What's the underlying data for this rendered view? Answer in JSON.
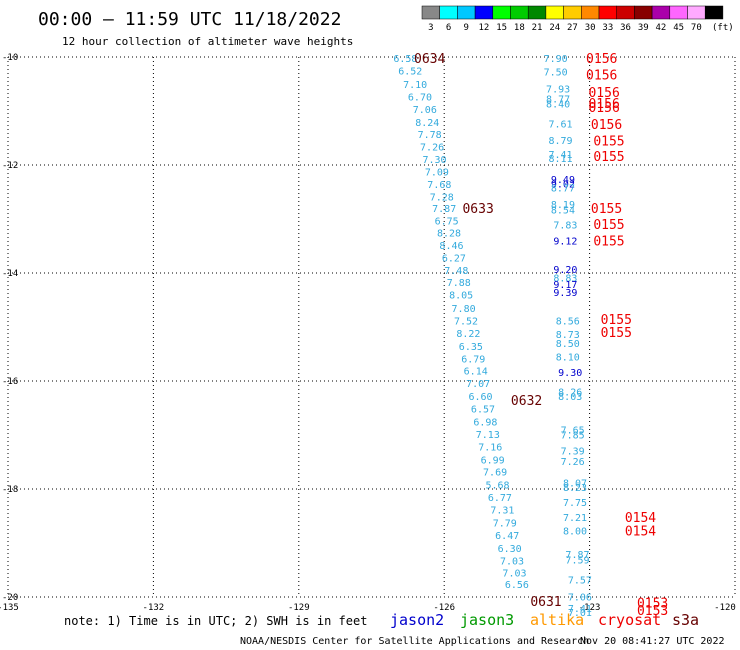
{
  "header": {
    "title": "00:00 – 11:59 UTC 11/18/2022",
    "subtitle": "12 hour collection of altimeter wave heights"
  },
  "legend": {
    "unit": "(ft)",
    "bins": [
      {
        "label": "3",
        "color": "#888888"
      },
      {
        "label": "6",
        "color": "#00ffff"
      },
      {
        "label": "9",
        "color": "#00c8ff"
      },
      {
        "label": "12",
        "color": "#0000ff"
      },
      {
        "label": "15",
        "color": "#00ff00"
      },
      {
        "label": "18",
        "color": "#00cc00"
      },
      {
        "label": "21",
        "color": "#008800"
      },
      {
        "label": "24",
        "color": "#ffff00"
      },
      {
        "label": "27",
        "color": "#ffcc00"
      },
      {
        "label": "30",
        "color": "#ff8800"
      },
      {
        "label": "33",
        "color": "#ff0000"
      },
      {
        "label": "36",
        "color": "#cc0000"
      },
      {
        "label": "39",
        "color": "#880000"
      },
      {
        "label": "42",
        "color": "#aa00aa"
      },
      {
        "label": "45",
        "color": "#ff66ff"
      },
      {
        "label": "70",
        "color": "#ffaaff"
      },
      {
        "label": "",
        "color": "#000000"
      }
    ]
  },
  "axes": {
    "lat_ticks": [
      "-10",
      "-12",
      "-14",
      "-16",
      "-18",
      "-20"
    ],
    "lon_ticks": [
      "-135",
      "-132",
      "-129",
      "-126",
      "-123",
      "-120"
    ],
    "lat_range": [
      -20,
      -10
    ],
    "lon_range": [
      -135,
      -120
    ],
    "grid": "dotted"
  },
  "tracks": {
    "west": {
      "color": "#33aadd",
      "points": [
        {
          "lat": -10.02,
          "lon": -126.8,
          "v": "6.58"
        },
        {
          "lat": -10.25,
          "lon": -126.7,
          "v": "6.52"
        },
        {
          "lat": -10.5,
          "lon": -126.6,
          "v": "7.10"
        },
        {
          "lat": -10.73,
          "lon": -126.5,
          "v": "6.70"
        },
        {
          "lat": -10.96,
          "lon": -126.4,
          "v": "7.06"
        },
        {
          "lat": -11.2,
          "lon": -126.35,
          "v": "8.24"
        },
        {
          "lat": -11.43,
          "lon": -126.3,
          "v": "7.78"
        },
        {
          "lat": -11.66,
          "lon": -126.25,
          "v": "7.26"
        },
        {
          "lat": -11.89,
          "lon": -126.2,
          "v": "7.30"
        },
        {
          "lat": -12.12,
          "lon": -126.15,
          "v": "7.09"
        },
        {
          "lat": -12.35,
          "lon": -126.1,
          "v": "7.68"
        },
        {
          "lat": -12.58,
          "lon": -126.05,
          "v": "7.28"
        },
        {
          "lat": -12.8,
          "lon": -126.0,
          "v": "7.87"
        },
        {
          "lat": -13.03,
          "lon": -125.95,
          "v": "6.75"
        },
        {
          "lat": -13.25,
          "lon": -125.9,
          "v": "8.28"
        },
        {
          "lat": -13.48,
          "lon": -125.85,
          "v": "8.46"
        },
        {
          "lat": -13.71,
          "lon": -125.8,
          "v": "6.27"
        },
        {
          "lat": -13.94,
          "lon": -125.75,
          "v": "7.48"
        },
        {
          "lat": -14.17,
          "lon": -125.7,
          "v": "7.88"
        },
        {
          "lat": -14.4,
          "lon": -125.65,
          "v": "8.05"
        },
        {
          "lat": -14.65,
          "lon": -125.6,
          "v": "7.80"
        },
        {
          "lat": -14.88,
          "lon": -125.55,
          "v": "7.52"
        },
        {
          "lat": -15.11,
          "lon": -125.5,
          "v": "8.22"
        },
        {
          "lat": -15.35,
          "lon": -125.45,
          "v": "6.35"
        },
        {
          "lat": -15.58,
          "lon": -125.4,
          "v": "6.79"
        },
        {
          "lat": -15.81,
          "lon": -125.35,
          "v": "6.14"
        },
        {
          "lat": -16.04,
          "lon": -125.3,
          "v": "7.07"
        },
        {
          "lat": -16.28,
          "lon": -125.25,
          "v": "6.60"
        },
        {
          "lat": -16.51,
          "lon": -125.2,
          "v": "6.57"
        },
        {
          "lat": -16.75,
          "lon": -125.15,
          "v": "6.98"
        },
        {
          "lat": -16.98,
          "lon": -125.1,
          "v": "7.13"
        },
        {
          "lat": -17.21,
          "lon": -125.05,
          "v": "7.16"
        },
        {
          "lat": -17.45,
          "lon": -125.0,
          "v": "6.99"
        },
        {
          "lat": -17.68,
          "lon": -124.95,
          "v": "7.69"
        },
        {
          "lat": -17.92,
          "lon": -124.9,
          "v": "5.68"
        },
        {
          "lat": -18.15,
          "lon": -124.85,
          "v": "6.77"
        },
        {
          "lat": -18.38,
          "lon": -124.8,
          "v": "7.31"
        },
        {
          "lat": -18.62,
          "lon": -124.75,
          "v": "7.79"
        },
        {
          "lat": -18.85,
          "lon": -124.7,
          "v": "6.47"
        },
        {
          "lat": -19.09,
          "lon": -124.65,
          "v": "6.30"
        },
        {
          "lat": -19.32,
          "lon": -124.6,
          "v": "7.03"
        },
        {
          "lat": -19.55,
          "lon": -124.55,
          "v": "7.03"
        },
        {
          "lat": -19.76,
          "lon": -124.5,
          "v": "6.56"
        }
      ]
    },
    "east": {
      "points": [
        {
          "lat": -10.02,
          "lon": -123.7,
          "v": "7.90",
          "c": "#33aadd"
        },
        {
          "lat": -10.27,
          "lon": -123.7,
          "v": "7.50",
          "c": "#33aadd"
        },
        {
          "lat": -10.58,
          "lon": -123.65,
          "v": "7.93",
          "c": "#33aadd"
        },
        {
          "lat": -10.77,
          "lon": -123.65,
          "v": "8.77",
          "c": "#33aadd"
        },
        {
          "lat": -10.86,
          "lon": -123.65,
          "v": "8.40",
          "c": "#33aadd"
        },
        {
          "lat": -11.23,
          "lon": -123.6,
          "v": "7.61",
          "c": "#33aadd"
        },
        {
          "lat": -11.54,
          "lon": -123.6,
          "v": "8.79",
          "c": "#33aadd"
        },
        {
          "lat": -11.8,
          "lon": -123.6,
          "v": "7.41",
          "c": "#33aadd"
        },
        {
          "lat": -11.87,
          "lon": -123.6,
          "v": "8.11",
          "c": "#33aadd"
        },
        {
          "lat": -12.26,
          "lon": -123.55,
          "v": "9.49",
          "c": "#0000cc"
        },
        {
          "lat": -12.34,
          "lon": -123.55,
          "v": "9.02",
          "c": "#0000cc"
        },
        {
          "lat": -12.42,
          "lon": -123.55,
          "v": "8.77",
          "c": "#33aadd"
        },
        {
          "lat": -12.72,
          "lon": -123.55,
          "v": "8.19",
          "c": "#33aadd"
        },
        {
          "lat": -12.82,
          "lon": -123.55,
          "v": "8.54",
          "c": "#33aadd"
        },
        {
          "lat": -13.1,
          "lon": -123.5,
          "v": "7.83",
          "c": "#33aadd"
        },
        {
          "lat": -13.4,
          "lon": -123.5,
          "v": "9.12",
          "c": "#0000cc"
        },
        {
          "lat": -13.93,
          "lon": -123.5,
          "v": "9.20",
          "c": "#0000cc"
        },
        {
          "lat": -14.08,
          "lon": -123.5,
          "v": "8.83",
          "c": "#33aadd"
        },
        {
          "lat": -14.2,
          "lon": -123.5,
          "v": "9.17",
          "c": "#0000cc"
        },
        {
          "lat": -14.35,
          "lon": -123.5,
          "v": "9.39",
          "c": "#0000cc"
        },
        {
          "lat": -14.88,
          "lon": -123.45,
          "v": "8.56",
          "c": "#33aadd"
        },
        {
          "lat": -15.13,
          "lon": -123.45,
          "v": "8.73",
          "c": "#33aadd"
        },
        {
          "lat": -15.3,
          "lon": -123.45,
          "v": "8.50",
          "c": "#33aadd"
        },
        {
          "lat": -15.55,
          "lon": -123.45,
          "v": "8.10",
          "c": "#33aadd"
        },
        {
          "lat": -15.83,
          "lon": -123.4,
          "v": "9.30",
          "c": "#0000cc"
        },
        {
          "lat": -16.19,
          "lon": -123.4,
          "v": "8.26",
          "c": "#33aadd"
        },
        {
          "lat": -16.28,
          "lon": -123.4,
          "v": "8.03",
          "c": "#33aadd"
        },
        {
          "lat": -16.9,
          "lon": -123.35,
          "v": "7.65",
          "c": "#33aadd"
        },
        {
          "lat": -16.99,
          "lon": -123.35,
          "v": "7.85",
          "c": "#33aadd"
        },
        {
          "lat": -17.29,
          "lon": -123.35,
          "v": "7.39",
          "c": "#33aadd"
        },
        {
          "lat": -17.48,
          "lon": -123.35,
          "v": "7.26",
          "c": "#33aadd"
        },
        {
          "lat": -17.88,
          "lon": -123.3,
          "v": "8.07",
          "c": "#33aadd"
        },
        {
          "lat": -17.96,
          "lon": -123.3,
          "v": "8.23",
          "c": "#33aadd"
        },
        {
          "lat": -18.24,
          "lon": -123.3,
          "v": "7.75",
          "c": "#33aadd"
        },
        {
          "lat": -18.52,
          "lon": -123.3,
          "v": "7.21",
          "c": "#33aadd"
        },
        {
          "lat": -18.77,
          "lon": -123.3,
          "v": "8.00",
          "c": "#33aadd"
        },
        {
          "lat": -19.2,
          "lon": -123.25,
          "v": "7.87",
          "c": "#33aadd"
        },
        {
          "lat": -19.31,
          "lon": -123.25,
          "v": "7.59",
          "c": "#33aadd"
        },
        {
          "lat": -19.68,
          "lon": -123.2,
          "v": "7.57",
          "c": "#33aadd"
        },
        {
          "lat": -19.99,
          "lon": -123.2,
          "v": "7.06",
          "c": "#33aadd"
        },
        {
          "lat": -20.2,
          "lon": -123.2,
          "v": "7.41",
          "c": "#33aadd"
        },
        {
          "lat": -20.28,
          "lon": -123.2,
          "v": "7.01",
          "c": "#33aadd"
        }
      ]
    }
  },
  "time_labels": [
    {
      "lat": -10.02,
      "lon": -126.3,
      "v": "0634",
      "c": "#660000"
    },
    {
      "lat": -12.8,
      "lon": -125.3,
      "v": "0633",
      "c": "#660000"
    },
    {
      "lat": -16.35,
      "lon": -124.3,
      "v": "0632",
      "c": "#660000"
    },
    {
      "lat": -20.07,
      "lon": -123.9,
      "v": "0631",
      "c": "#660000"
    },
    {
      "lat": -10.02,
      "lon": -122.75,
      "v": "0156",
      "c": "#ee0000"
    },
    {
      "lat": -10.32,
      "lon": -122.75,
      "v": "0156",
      "c": "#ee0000"
    },
    {
      "lat": -10.65,
      "lon": -122.7,
      "v": "0156",
      "c": "#ee0000"
    },
    {
      "lat": -10.85,
      "lon": -122.7,
      "v": "0156",
      "c": "#ee0000"
    },
    {
      "lat": -10.93,
      "lon": -122.7,
      "v": "0156",
      "c": "#ee0000"
    },
    {
      "lat": -11.24,
      "lon": -122.65,
      "v": "0156",
      "c": "#ee0000"
    },
    {
      "lat": -11.55,
      "lon": -122.6,
      "v": "0155",
      "c": "#ee0000"
    },
    {
      "lat": -11.83,
      "lon": -122.6,
      "v": "0155",
      "c": "#ee0000"
    },
    {
      "lat": -12.8,
      "lon": -122.65,
      "v": "0155",
      "c": "#ee0000"
    },
    {
      "lat": -13.09,
      "lon": -122.6,
      "v": "0155",
      "c": "#ee0000"
    },
    {
      "lat": -13.4,
      "lon": -122.6,
      "v": "0155",
      "c": "#ee0000"
    },
    {
      "lat": -14.85,
      "lon": -122.45,
      "v": "0155",
      "c": "#ee0000"
    },
    {
      "lat": -15.09,
      "lon": -122.45,
      "v": "0155",
      "c": "#ee0000"
    },
    {
      "lat": -18.52,
      "lon": -121.95,
      "v": "0154",
      "c": "#ee0000"
    },
    {
      "lat": -18.77,
      "lon": -121.95,
      "v": "0154",
      "c": "#ee0000"
    },
    {
      "lat": -20.1,
      "lon": -121.7,
      "v": "0153",
      "c": "#ee0000"
    },
    {
      "lat": -20.24,
      "lon": -121.7,
      "v": "0153",
      "c": "#ee0000"
    }
  ],
  "footer": {
    "note": "note: 1) Time is in UTC; 2) SWH is in feet",
    "satellites": [
      {
        "name": "jason2",
        "color": "#0000cc"
      },
      {
        "name": "jason3",
        "color": "#009900"
      },
      {
        "name": "altika",
        "color": "#ff9900"
      },
      {
        "name": "cryosat",
        "color": "#ee0000"
      },
      {
        "name": "s3a",
        "color": "#660000"
      }
    ],
    "credit": "NOAA/NESDIS Center for Satellite Applications and Research",
    "generated": "Nov 20 08:41:27 UTC 2022"
  }
}
